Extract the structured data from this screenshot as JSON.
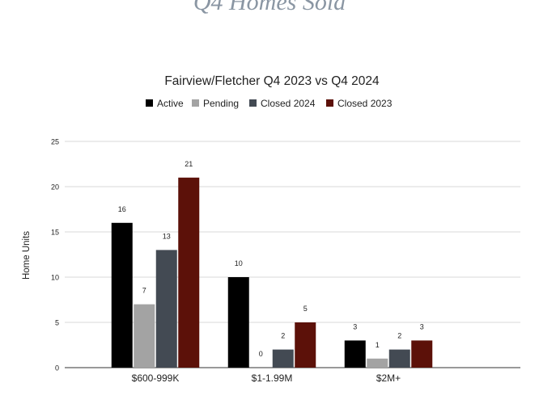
{
  "page": {
    "heading": "Q4 Homes Sold"
  },
  "colors": {
    "Active": "#000000",
    "Pending": "#a3a3a3",
    "Closed 2024": "#434a53",
    "Closed 2023": "#5c1109",
    "grid": "#d9d9d9",
    "text": "#222222"
  },
  "chart_data": {
    "type": "bar",
    "title": "Fairview/Fletcher Q4 2023 vs Q4 2024",
    "xlabel": "",
    "ylabel": "Home Units",
    "ylim": [
      0,
      25
    ],
    "yticks": [
      0,
      5,
      10,
      15,
      20,
      25
    ],
    "grid": true,
    "legend_position": "top",
    "categories": [
      "$600-999K",
      "$1-1.99M",
      "$2M+"
    ],
    "series": [
      {
        "name": "Active",
        "values": [
          16,
          10,
          3
        ]
      },
      {
        "name": "Pending",
        "values": [
          7,
          0,
          1
        ]
      },
      {
        "name": "Closed 2024",
        "values": [
          13,
          2,
          2
        ]
      },
      {
        "name": "Closed 2023",
        "values": [
          21,
          5,
          3
        ]
      }
    ]
  }
}
